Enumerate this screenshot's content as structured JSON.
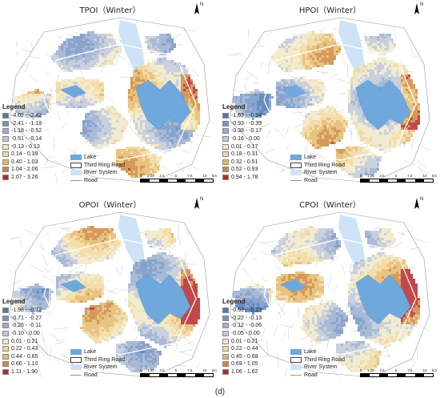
{
  "caption": "(d)",
  "north_label": "N",
  "colors": {
    "lake": "#6fa8dc",
    "river": "#cfe3f7",
    "road": "#b8b8b8",
    "ring_road": "#ffffff"
  },
  "common_legend": {
    "lake": "Lake",
    "ring_road": "Third Ring Road",
    "river": "River System",
    "road": "Road"
  },
  "scale": {
    "labels": [
      "0",
      "1.25",
      "2.5",
      "",
      "5",
      "",
      "7.5",
      "",
      "10"
    ],
    "unit": "km"
  },
  "panels": [
    {
      "title": "TPOI（Winter）",
      "legend_title": "Legend",
      "classes": [
        {
          "label": "-4.02 - -2.42",
          "color": "#4e79b8"
        },
        {
          "label": "-2.41 - -1.19",
          "color": "#7694c4"
        },
        {
          "label": "-1.18 - -0.52",
          "color": "#9aaecf"
        },
        {
          "label": "-0.51 - -0.14",
          "color": "#c0c8d8"
        },
        {
          "label": "-0.13 - 0.13",
          "color": "#efe8c8"
        },
        {
          "label": "0.14 - 0.39",
          "color": "#f1d79a"
        },
        {
          "label": "0.40 - 1.03",
          "color": "#e5b86b"
        },
        {
          "label": "1.04 - 2.06",
          "color": "#cf8a3e"
        },
        {
          "label": "2.07 - 3.26",
          "color": "#b8282b"
        }
      ]
    },
    {
      "title": "HPOI（Winter）",
      "legend_title": "Legend",
      "classes": [
        {
          "label": "-1.63 - -0.94",
          "color": "#4e79b8"
        },
        {
          "label": "-0.93 - -0.39",
          "color": "#7694c4"
        },
        {
          "label": "-0.38 - -0.17",
          "color": "#9aaecf"
        },
        {
          "label": "-0.16 - 0.00",
          "color": "#c0c8d8"
        },
        {
          "label": "0.01 - 0.17",
          "color": "#efe8c8"
        },
        {
          "label": "0.18 - 0.31",
          "color": "#f1d79a"
        },
        {
          "label": "0.32 - 0.51",
          "color": "#e5b86b"
        },
        {
          "label": "0.52 - 0.93",
          "color": "#cf8a3e"
        },
        {
          "label": "0.94 - 1.78",
          "color": "#b8282b"
        }
      ]
    },
    {
      "title": "OPOI（Winter）",
      "legend_title": "Legend",
      "classes": [
        {
          "label": "-1.98 - -0.72",
          "color": "#4e79b8"
        },
        {
          "label": "-0.71 - -0.27",
          "color": "#7694c4"
        },
        {
          "label": "-0.26 - -0.11",
          "color": "#9aaecf"
        },
        {
          "label": "-0.10 - 0.00",
          "color": "#c0c8d8"
        },
        {
          "label": "0.01 - 0.21",
          "color": "#efe8c8"
        },
        {
          "label": "0.22 - 0.43",
          "color": "#f1d79a"
        },
        {
          "label": "0.44 - 0.65",
          "color": "#e5b86b"
        },
        {
          "label": "0.66 - 1.10",
          "color": "#cf8a3e"
        },
        {
          "label": "1.11 - 1.90",
          "color": "#b8282b"
        }
      ]
    },
    {
      "title": "CPOI（Winter）",
      "legend_title": "Legend",
      "classes": [
        {
          "label": "-0.53 - -0.23",
          "color": "#4e79b8"
        },
        {
          "label": "-0.22 - -0.13",
          "color": "#7694c4"
        },
        {
          "label": "-0.12 - -0.06",
          "color": "#9aaecf"
        },
        {
          "label": "-0.05 - 0.00",
          "color": "#c0c8d8"
        },
        {
          "label": "0.01 - 0.21",
          "color": "#efe8c8"
        },
        {
          "label": "0.22 - 0.44",
          "color": "#f1d79a"
        },
        {
          "label": "0.45 - 0.68",
          "color": "#e5b86b"
        },
        {
          "label": "0.69 - 1.05",
          "color": "#cf8a3e"
        },
        {
          "label": "1.06 - 1.62",
          "color": "#b8282b"
        }
      ]
    }
  ]
}
